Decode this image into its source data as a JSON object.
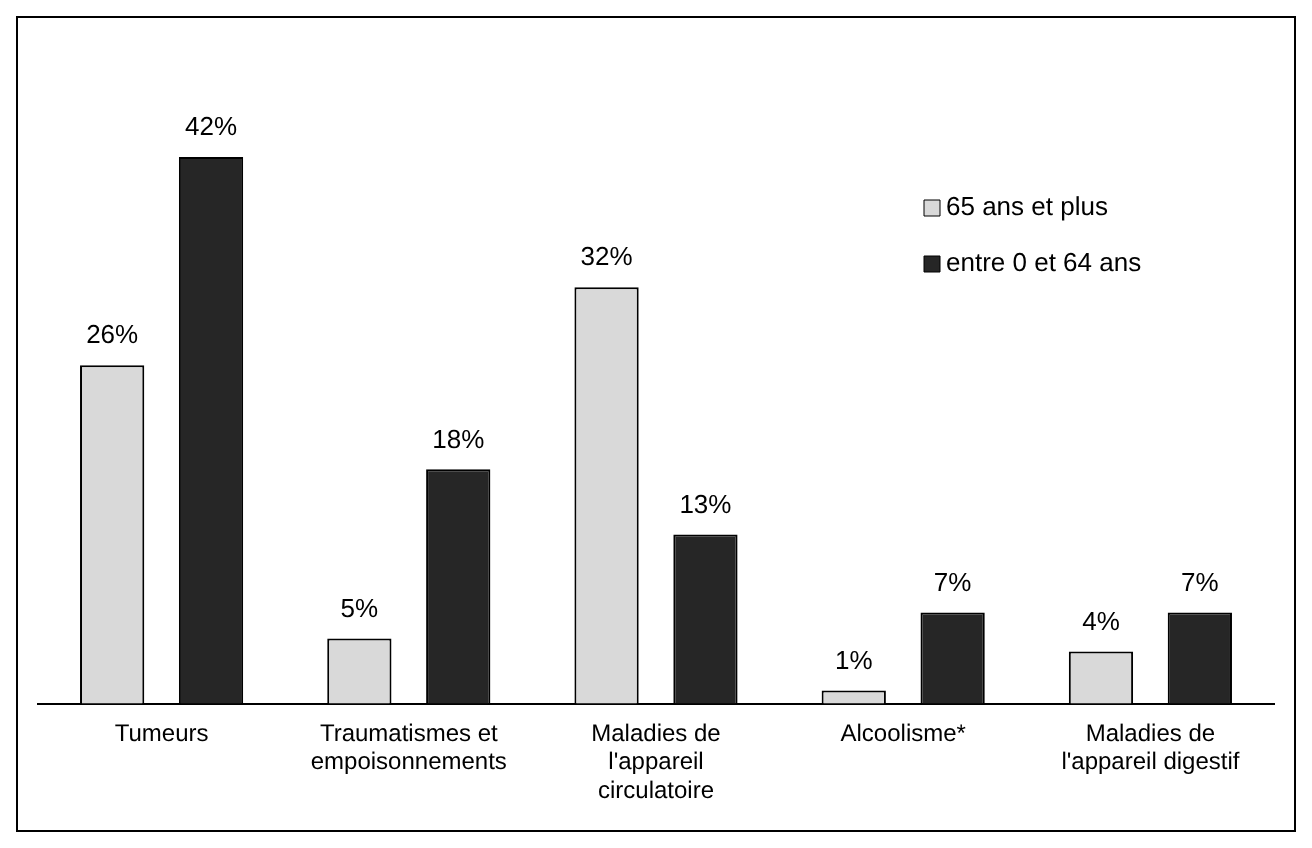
{
  "chart_data": {
    "type": "bar",
    "categories": [
      "Tumeurs",
      "Traumatismes et empoisonnements",
      "Maladies de l'appareil circulatoire",
      "Alcoolisme*",
      "Maladies de l'appareil digestif"
    ],
    "series": [
      {
        "name": "65 ans et plus",
        "color": "#d9d9d9",
        "values": [
          26,
          5,
          32,
          1,
          4
        ],
        "value_labels": [
          "26%",
          "5%",
          "32%",
          "1%",
          "4%"
        ]
      },
      {
        "name": "entre 0 et 64 ans",
        "color": "#262626",
        "values": [
          42,
          18,
          13,
          7,
          7
        ],
        "value_labels": [
          "42%",
          "18%",
          "13%",
          "7%",
          "7%"
        ]
      }
    ],
    "legend": "top right",
    "grid": false
  }
}
